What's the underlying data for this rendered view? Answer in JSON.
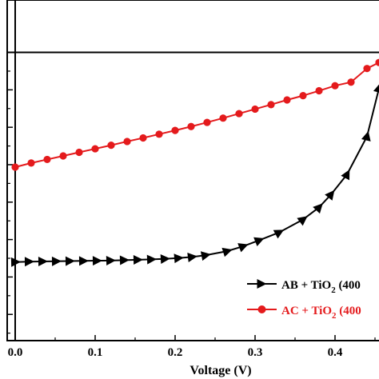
{
  "chart_data": {
    "type": "line",
    "xlabel": "Voltage (V)",
    "xlim": [
      -0.01,
      0.455
    ],
    "ylim": [
      -0.0154,
      0.0028
    ],
    "x_ticks": [
      "0.0",
      "0.1",
      "0.2",
      "0.3",
      "0.4"
    ],
    "x_tick_values": [
      0.0,
      0.1,
      0.2,
      0.3,
      0.4
    ],
    "y_major_ticks": [
      0.0,
      -0.002,
      -0.004,
      -0.006,
      -0.008,
      -0.01,
      -0.012,
      -0.014
    ],
    "legend_position": "bottom-right",
    "grid": false,
    "series": [
      {
        "name_parts": {
          "pre": "AB + TiO",
          "sub": "2",
          "post": " (400"
        },
        "color": "#000000",
        "marker": "triangle-right",
        "x": [
          0.0,
          0.017,
          0.034,
          0.051,
          0.068,
          0.085,
          0.102,
          0.119,
          0.136,
          0.153,
          0.17,
          0.187,
          0.204,
          0.221,
          0.238,
          0.265,
          0.285,
          0.305,
          0.33,
          0.36,
          0.38,
          0.395,
          0.415,
          0.44,
          0.455
        ],
        "y": [
          -0.0112,
          -0.01118,
          -0.01117,
          -0.01116,
          -0.01115,
          -0.01114,
          -0.01113,
          -0.01112,
          -0.0111,
          -0.01108,
          -0.01106,
          -0.01103,
          -0.01099,
          -0.01093,
          -0.01084,
          -0.01062,
          -0.01036,
          -0.01004,
          -0.00962,
          -0.00893,
          -0.00828,
          -0.00759,
          -0.00652,
          -0.00449,
          -0.00192
        ]
      },
      {
        "name_parts": {
          "pre": "AC + TiO",
          "sub": "2",
          "post": " (400"
        },
        "color": "#e41a1c",
        "marker": "circle",
        "x": [
          0.0,
          0.02,
          0.04,
          0.06,
          0.08,
          0.1,
          0.12,
          0.14,
          0.16,
          0.18,
          0.2,
          0.22,
          0.24,
          0.26,
          0.28,
          0.3,
          0.32,
          0.34,
          0.36,
          0.38,
          0.4,
          0.42,
          0.44,
          0.455
        ],
        "y": [
          -0.00613,
          -0.00591,
          -0.00572,
          -0.00553,
          -0.00534,
          -0.00515,
          -0.00496,
          -0.00476,
          -0.00457,
          -0.00437,
          -0.00417,
          -0.00396,
          -0.00374,
          -0.00351,
          -0.00327,
          -0.00303,
          -0.00279,
          -0.00254,
          -0.00231,
          -0.00205,
          -0.00178,
          -0.00159,
          -0.00086,
          -0.00054
        ]
      }
    ]
  }
}
